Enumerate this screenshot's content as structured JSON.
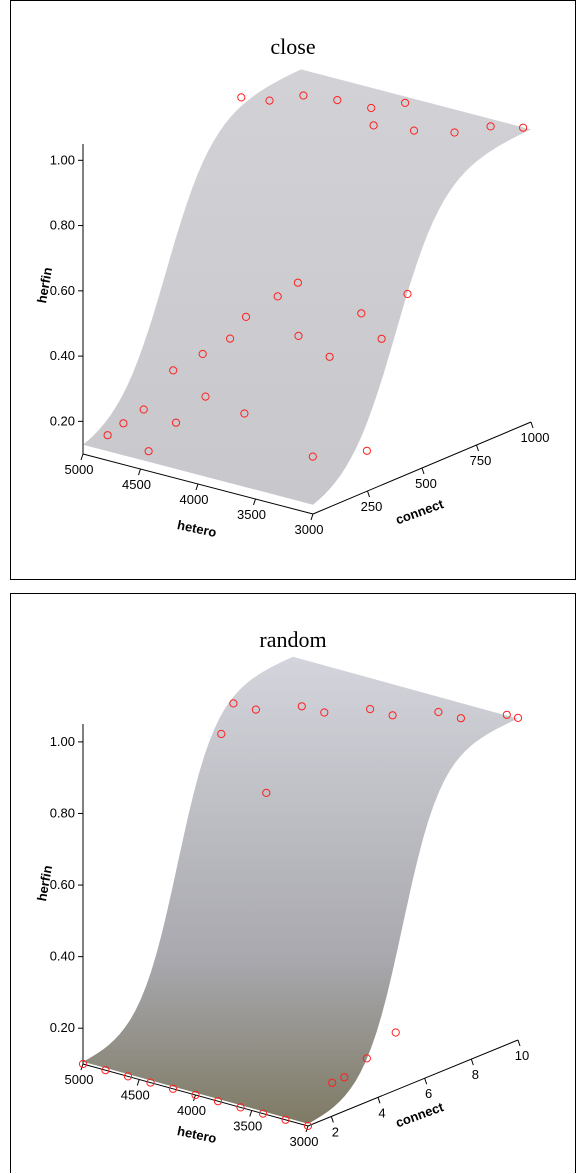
{
  "chart_data": [
    {
      "type": "scatter",
      "title": "close",
      "zlabel": "herfin",
      "xlabel": "hetero",
      "ylabel": "connect",
      "z_ticks": [
        "0.20",
        "0.40",
        "0.60",
        "0.80",
        "1.00"
      ],
      "x_ticks": [
        "5000",
        "4500",
        "4000",
        "3500",
        "3000"
      ],
      "y_ticks": [
        "250",
        "500",
        "750",
        "1000"
      ],
      "x_range": [
        3000,
        5000
      ],
      "y_range": [
        0,
        1000
      ],
      "z_range": [
        0.1,
        1.05
      ],
      "surface": "logistic rising toward connect",
      "series": [
        {
          "values": [
            {
              "x": 4900,
              "y": 60,
              "z": 0.15
            },
            {
              "x": 4800,
              "y": 80,
              "z": 0.19
            },
            {
              "x": 4700,
              "y": 120,
              "z": 0.23
            },
            {
              "x": 4600,
              "y": 90,
              "z": 0.12
            },
            {
              "x": 4500,
              "y": 150,
              "z": 0.36
            },
            {
              "x": 4400,
              "y": 110,
              "z": 0.22
            },
            {
              "x": 4300,
              "y": 180,
              "z": 0.42
            },
            {
              "x": 4200,
              "y": 140,
              "z": 0.31
            },
            {
              "x": 4100,
              "y": 200,
              "z": 0.48
            },
            {
              "x": 4000,
              "y": 220,
              "z": 0.55
            },
            {
              "x": 3900,
              "y": 160,
              "z": 0.28
            },
            {
              "x": 3800,
              "y": 260,
              "z": 0.62
            },
            {
              "x": 3700,
              "y": 300,
              "z": 0.66
            },
            {
              "x": 3600,
              "y": 250,
              "z": 0.52
            },
            {
              "x": 3500,
              "y": 340,
              "z": 0.44
            },
            {
              "x": 3400,
              "y": 210,
              "z": 0.18
            },
            {
              "x": 3300,
              "y": 380,
              "z": 0.58
            },
            {
              "x": 3200,
              "y": 420,
              "z": 0.5
            },
            {
              "x": 3100,
              "y": 300,
              "z": 0.2
            },
            {
              "x": 3050,
              "y": 460,
              "z": 0.64
            },
            {
              "x": 4950,
              "y": 700,
              "z": 1.0
            },
            {
              "x": 4800,
              "y": 750,
              "z": 0.99
            },
            {
              "x": 4600,
              "y": 800,
              "z": 1.01
            },
            {
              "x": 4400,
              "y": 850,
              "z": 1.0
            },
            {
              "x": 4200,
              "y": 900,
              "z": 0.98
            },
            {
              "x": 4000,
              "y": 950,
              "z": 1.0
            },
            {
              "x": 3800,
              "y": 700,
              "z": 1.02
            },
            {
              "x": 3600,
              "y": 780,
              "z": 1.0
            },
            {
              "x": 3400,
              "y": 860,
              "z": 0.99
            },
            {
              "x": 3200,
              "y": 920,
              "z": 1.01
            },
            {
              "x": 3050,
              "y": 990,
              "z": 1.0
            }
          ]
        }
      ]
    },
    {
      "type": "scatter",
      "title": "random",
      "zlabel": "herfin",
      "xlabel": "hetero",
      "ylabel": "connect",
      "z_ticks": [
        "0.20",
        "0.40",
        "0.60",
        "0.80",
        "1.00"
      ],
      "x_ticks": [
        "5000",
        "4500",
        "4000",
        "3500",
        "3000"
      ],
      "y_ticks": [
        "2",
        "4",
        "6",
        "8",
        "10"
      ],
      "x_range": [
        3000,
        5000
      ],
      "y_range": [
        1,
        10
      ],
      "z_range": [
        0.1,
        1.05
      ],
      "surface": "logistic rising toward connect",
      "series": [
        {
          "values": [
            {
              "x": 5000,
              "y": 1,
              "z": 0.1
            },
            {
              "x": 4800,
              "y": 1,
              "z": 0.1
            },
            {
              "x": 4600,
              "y": 1,
              "z": 0.1
            },
            {
              "x": 4400,
              "y": 1,
              "z": 0.1
            },
            {
              "x": 4200,
              "y": 1,
              "z": 0.1
            },
            {
              "x": 4000,
              "y": 1,
              "z": 0.1
            },
            {
              "x": 3800,
              "y": 1,
              "z": 0.1
            },
            {
              "x": 3600,
              "y": 1,
              "z": 0.1
            },
            {
              "x": 3400,
              "y": 1,
              "z": 0.1
            },
            {
              "x": 3200,
              "y": 1,
              "z": 0.1
            },
            {
              "x": 3000,
              "y": 1,
              "z": 0.1
            },
            {
              "x": 4700,
              "y": 6,
              "z": 1.0
            },
            {
              "x": 4500,
              "y": 6,
              "z": 1.0
            },
            {
              "x": 4300,
              "y": 7,
              "z": 1.0
            },
            {
              "x": 4100,
              "y": 7,
              "z": 1.0
            },
            {
              "x": 3900,
              "y": 8,
              "z": 1.0
            },
            {
              "x": 3700,
              "y": 8,
              "z": 1.0
            },
            {
              "x": 3500,
              "y": 9,
              "z": 1.0
            },
            {
              "x": 3300,
              "y": 9,
              "z": 1.0
            },
            {
              "x": 3100,
              "y": 10,
              "z": 1.0
            },
            {
              "x": 3000,
              "y": 10,
              "z": 1.0
            },
            {
              "x": 3200,
              "y": 3,
              "z": 0.15
            },
            {
              "x": 3100,
              "y": 4,
              "z": 0.2
            },
            {
              "x": 3300,
              "y": 4,
              "z": 0.13
            },
            {
              "x": 3050,
              "y": 5,
              "z": 0.25
            },
            {
              "x": 4600,
              "y": 5,
              "z": 0.95
            },
            {
              "x": 4200,
              "y": 5,
              "z": 0.82
            }
          ]
        }
      ]
    }
  ],
  "colors": {
    "marker": "#ff2020",
    "surface_close": "#c8c8cc",
    "surface_random_light": "#d4d4dc",
    "surface_random_dark": "#7e7a64",
    "axis": "#000000"
  }
}
